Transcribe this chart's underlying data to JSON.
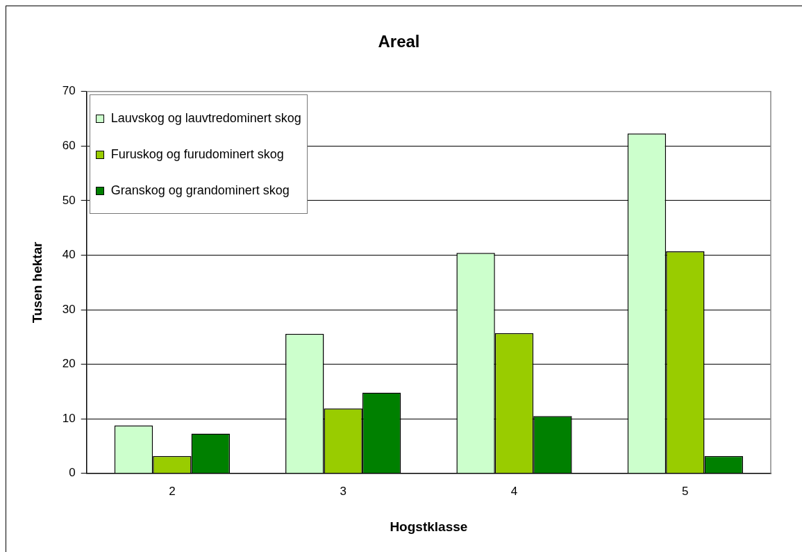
{
  "chart_data": {
    "type": "bar",
    "title": "Areal",
    "xlabel": "Hogstklasse",
    "ylabel": "Tusen hektar",
    "categories": [
      "2",
      "3",
      "4",
      "5"
    ],
    "series": [
      {
        "name": "Lauvskog og lauvtredominert skog",
        "color": "#ccffcc",
        "values": [
          8.8,
          25.6,
          40.4,
          62.3
        ]
      },
      {
        "name": "Furuskog og furudominert skog",
        "color": "#99cc00",
        "values": [
          3.2,
          11.9,
          25.7,
          40.7
        ]
      },
      {
        "name": "Granskog og grandominert skog",
        "color": "#008000",
        "values": [
          7.3,
          14.8,
          10.5,
          3.2
        ]
      }
    ],
    "ylim": [
      0,
      70
    ],
    "yticks": [
      0,
      10,
      20,
      30,
      40,
      50,
      60,
      70
    ],
    "grid": "y",
    "legend": "top left"
  }
}
